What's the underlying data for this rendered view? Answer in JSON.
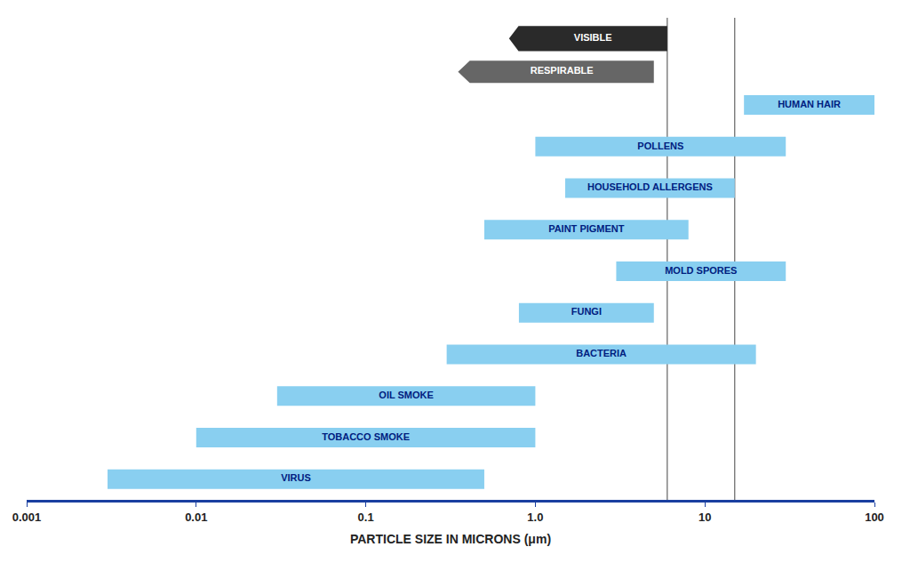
{
  "chart_data": {
    "type": "bar",
    "orientation": "horizontal",
    "xlabel": "PARTICLE SIZE IN MICRONS (μm)",
    "categories": [
      "HUMAN HAIR",
      "POLLENS",
      "HOUSEHOLD ALLERGENS",
      "PAINT PIGMENT",
      "MOLD SPORES",
      "FUNGI",
      "BACTERIA",
      "OIL SMOKE",
      "TOBACCO SMOKE",
      "VIRUS"
    ],
    "values": [
      [
        17,
        100
      ],
      [
        1.0,
        30
      ],
      [
        1.5,
        15
      ],
      [
        0.5,
        8.0
      ],
      [
        3.0,
        30
      ],
      [
        0.8,
        5.0
      ],
      [
        0.3,
        20
      ],
      [
        0.03,
        1.0
      ],
      [
        0.01,
        1.0
      ],
      [
        0.003,
        0.5
      ]
    ],
    "color": "#89CFF0",
    "log": "x",
    "xlim": [
      0.001,
      100
    ],
    "xticks": [
      0.001,
      0.01,
      0.1,
      {
        "value": 1.0,
        "label": "1.0"
      },
      10,
      100
    ],
    "grid": false,
    "tick_labels": "x",
    "bands": [
      {
        "label": "VISIBLE",
        "xmin": 0.7,
        "xmax": 6.0,
        "color": "#2a2a2a"
      },
      {
        "label": "RESPIRABLE",
        "xmin": 0.35,
        "xmax": 5.0,
        "color": "#666666"
      }
    ],
    "vertical_lines": [
      6.0,
      15.0
    ]
  }
}
